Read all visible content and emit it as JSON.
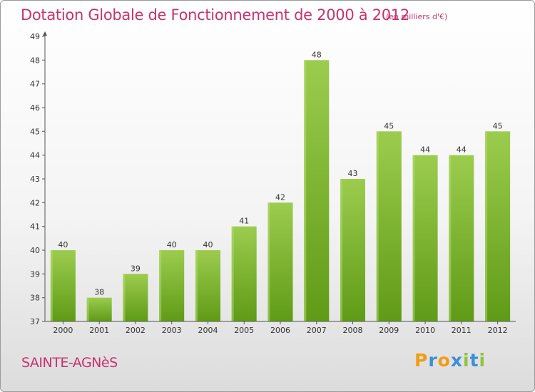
{
  "chart_data": {
    "type": "bar",
    "title": "Dotation Globale de Fonctionnement de 2000 à 2012",
    "subtitle": "(en milliers d'€)",
    "categories": [
      "2000",
      "2001",
      "2002",
      "2003",
      "2004",
      "2005",
      "2006",
      "2007",
      "2008",
      "2009",
      "2010",
      "2011",
      "2012"
    ],
    "values": [
      40,
      38,
      39,
      40,
      40,
      41,
      42,
      48,
      43,
      45,
      44,
      44,
      45
    ],
    "data_labels": [
      "40",
      "38",
      "39",
      "40",
      "40",
      "41",
      "42",
      "48",
      "43",
      "45",
      "44",
      "44",
      "45"
    ],
    "ylim": [
      37,
      49
    ],
    "yticks": [
      37,
      38,
      39,
      40,
      41,
      42,
      43,
      44,
      45,
      46,
      47,
      48,
      49
    ],
    "ytick_labels": [
      "37",
      "38",
      "39",
      "40",
      "41",
      "42",
      "43",
      "44",
      "45",
      "46",
      "47",
      "48",
      "49"
    ],
    "xlabel": "",
    "ylabel": "",
    "grid": false,
    "legend": "none",
    "bar_color_top": "#9ccc4e",
    "bar_color_bottom": "#5f9b16"
  },
  "footer": {
    "commune": "SAINTE-AGNèS",
    "logo_letters": [
      "P",
      "r",
      "o",
      "x",
      "i",
      "t",
      "i"
    ],
    "logo_colors": [
      "#f39c12",
      "#3b8fd6",
      "#f39c12",
      "#3b8fd6",
      "#8cc63f",
      "#3b8fd6",
      "#8cc63f"
    ]
  },
  "colors": {
    "title": "#c8326e",
    "axis": "#555555",
    "label": "#333333"
  }
}
